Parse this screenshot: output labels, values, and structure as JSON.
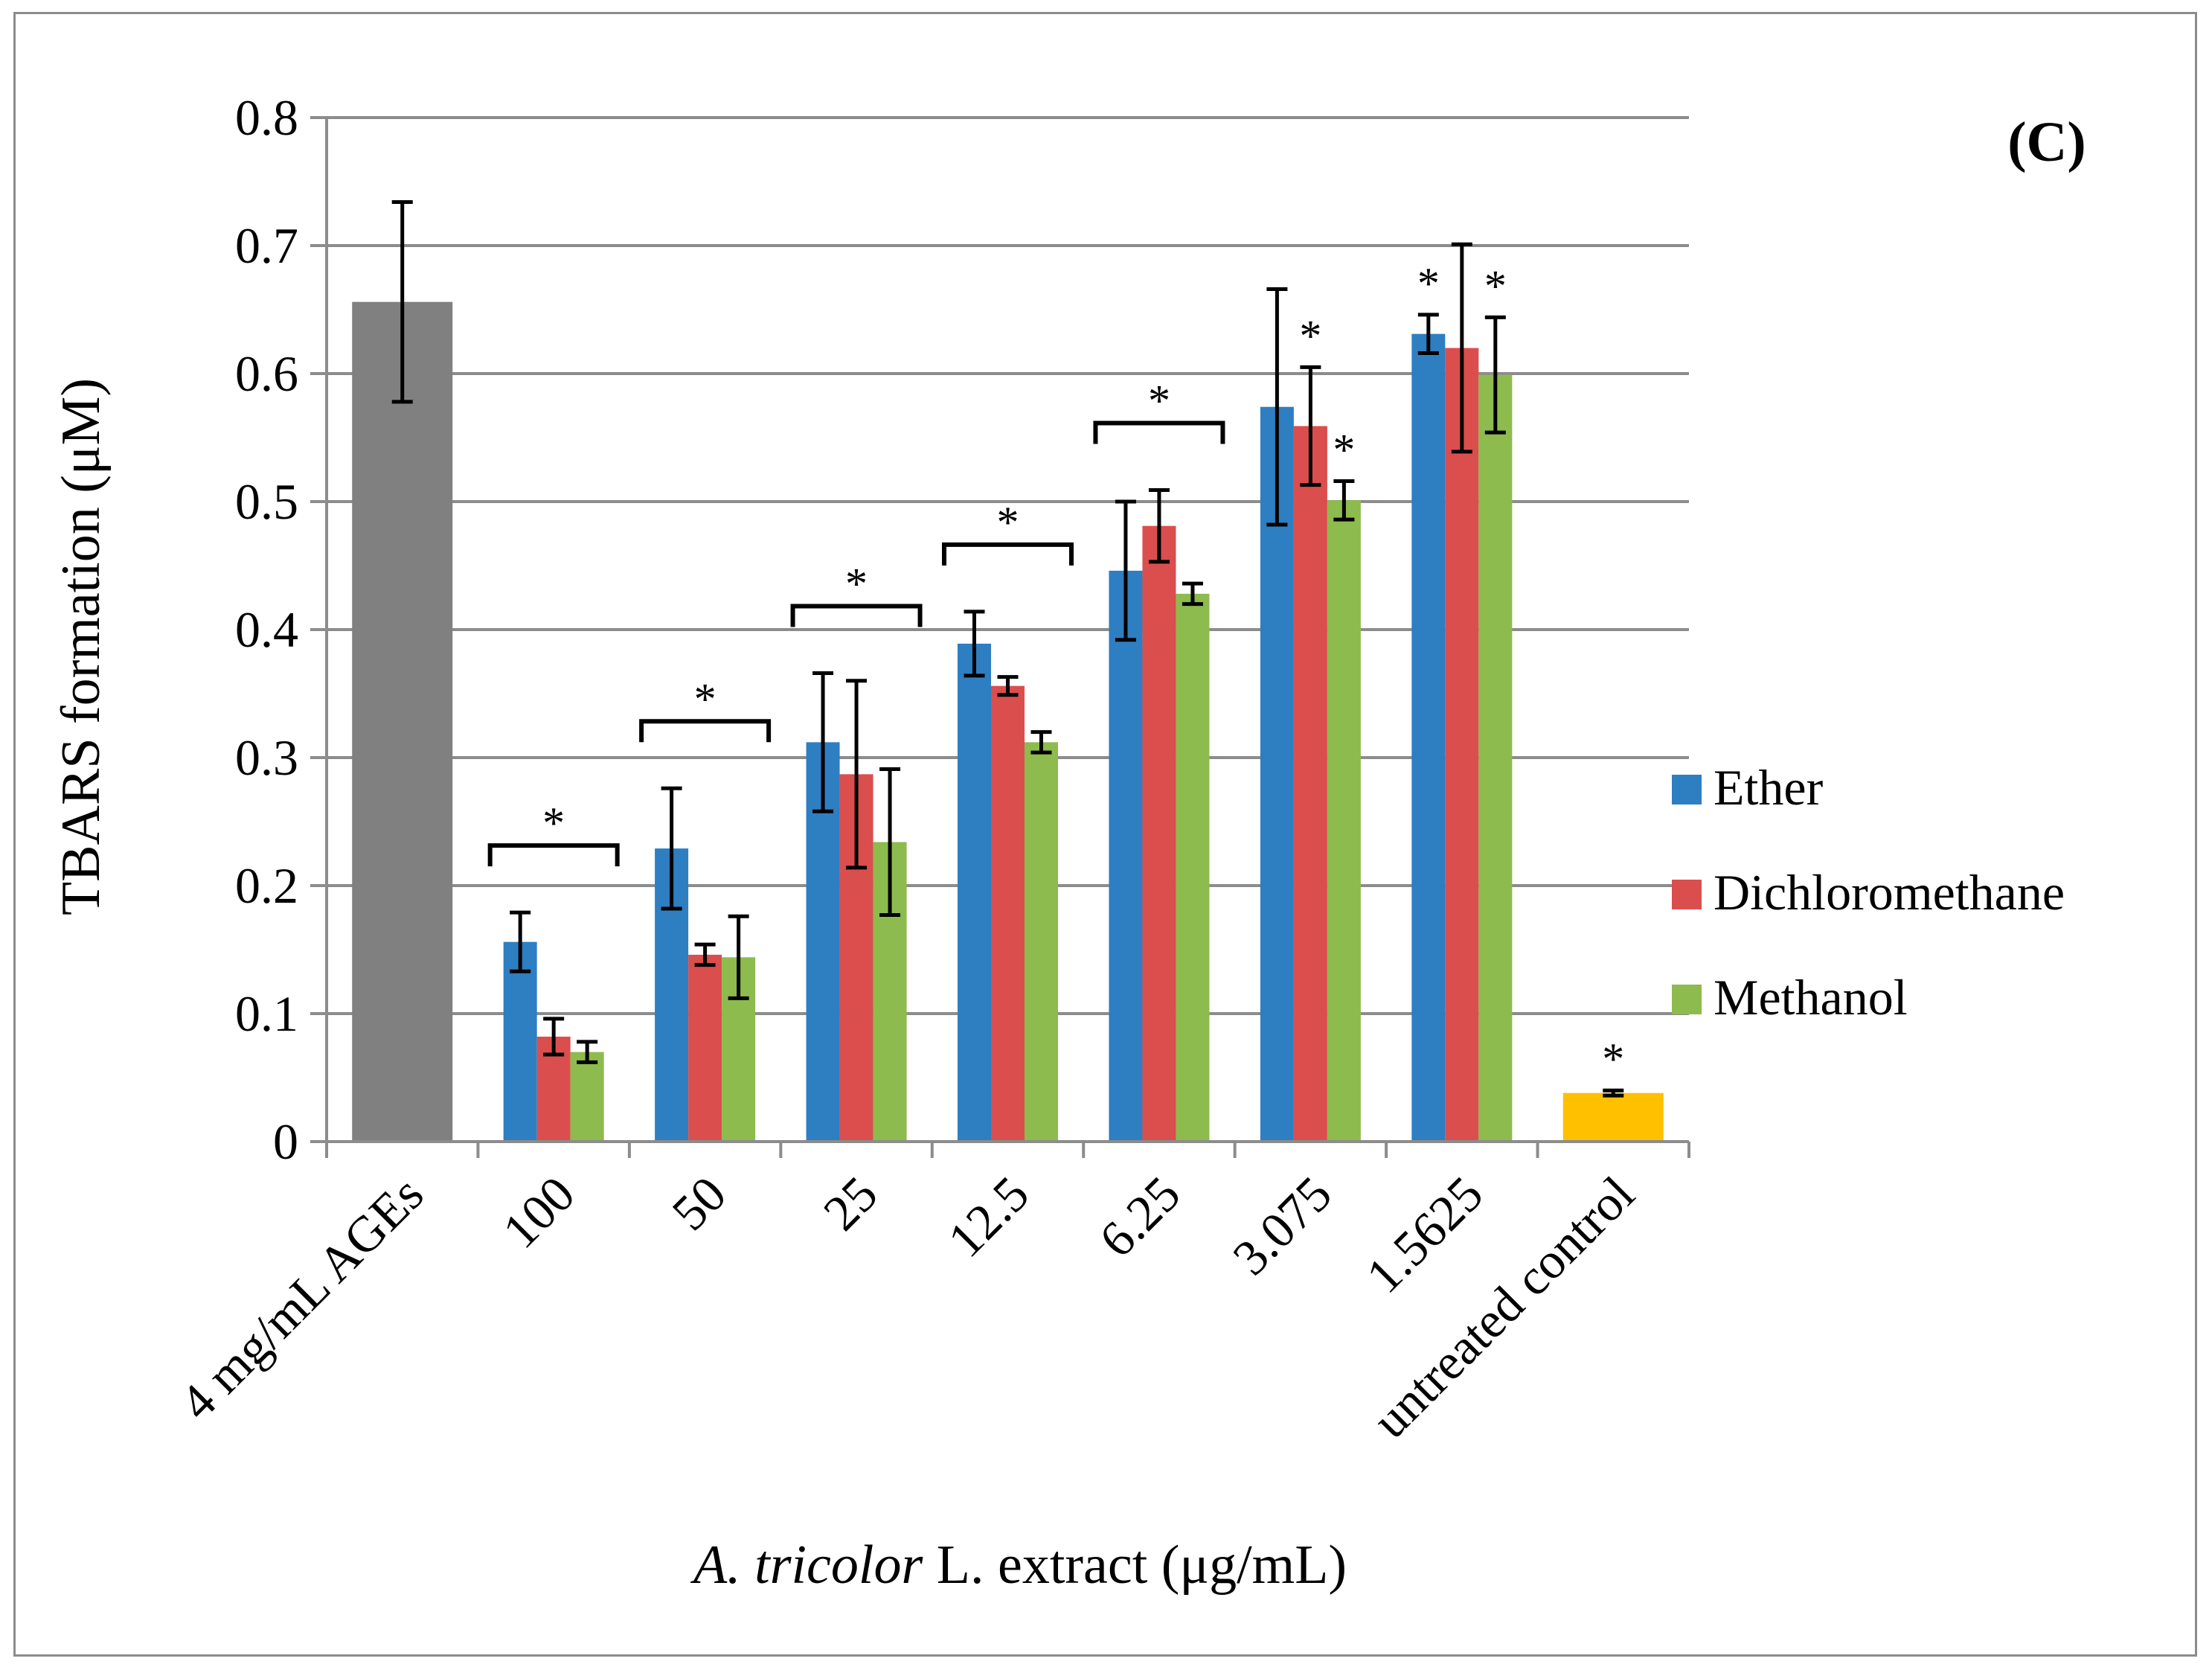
{
  "chart_data": {
    "type": "bar",
    "panel_label": "(C)",
    "ylabel": "TBARS formation (μM)",
    "xlabel_italic": "A. tricolor",
    "xlabel_rest": " L. extract (μg/mL)",
    "ylim": [
      0,
      0.8
    ],
    "yticks": [
      "0",
      "0.1",
      "0.2",
      "0.3",
      "0.4",
      "0.5",
      "0.6",
      "0.7",
      "0.8"
    ],
    "grid": true,
    "legend_position": "right",
    "categories": [
      "4 mg/mL AGEs",
      "100",
      "50",
      "25",
      "12.5",
      "6.25",
      "3.075",
      "1.5625",
      "untreated control"
    ],
    "series": [
      {
        "name": "Ether",
        "color": "#2E7EC2",
        "values": [
          null,
          0.156,
          0.229,
          0.312,
          0.389,
          0.446,
          0.574,
          0.631,
          null
        ],
        "errors": [
          null,
          0.023,
          0.047,
          0.054,
          0.025,
          0.054,
          0.092,
          0.015,
          null
        ]
      },
      {
        "name": "Dichloromethane",
        "color": "#DB4E4E",
        "values": [
          null,
          0.082,
          0.146,
          0.287,
          0.356,
          0.481,
          0.559,
          0.62,
          null
        ],
        "errors": [
          null,
          0.014,
          0.008,
          0.073,
          0.007,
          0.028,
          0.046,
          0.081,
          null
        ]
      },
      {
        "name": "Methanol",
        "color": "#8DBB4D",
        "values": [
          null,
          0.07,
          0.144,
          0.234,
          0.312,
          0.428,
          0.501,
          0.599,
          null
        ],
        "errors": [
          null,
          0.008,
          0.032,
          0.057,
          0.008,
          0.008,
          0.015,
          0.045,
          null
        ]
      }
    ],
    "single_bars": [
      {
        "category": "4 mg/mL AGEs",
        "value": 0.656,
        "error": 0.078,
        "color": "#808080"
      },
      {
        "category": "untreated control",
        "value": 0.038,
        "error": 0.002,
        "color": "#FFC000"
      }
    ],
    "annotations": {
      "bracket_star_categories": [
        "100",
        "50",
        "25",
        "12.5",
        "6.25"
      ],
      "star_text": "*",
      "individual_stars": [
        {
          "category": "3.075",
          "series": "Dichloromethane"
        },
        {
          "category": "3.075",
          "series": "Methanol"
        },
        {
          "category": "1.5625",
          "series": "Ether"
        },
        {
          "category": "1.5625",
          "series": "Methanol"
        },
        {
          "category": "untreated control",
          "series": null
        }
      ]
    }
  }
}
